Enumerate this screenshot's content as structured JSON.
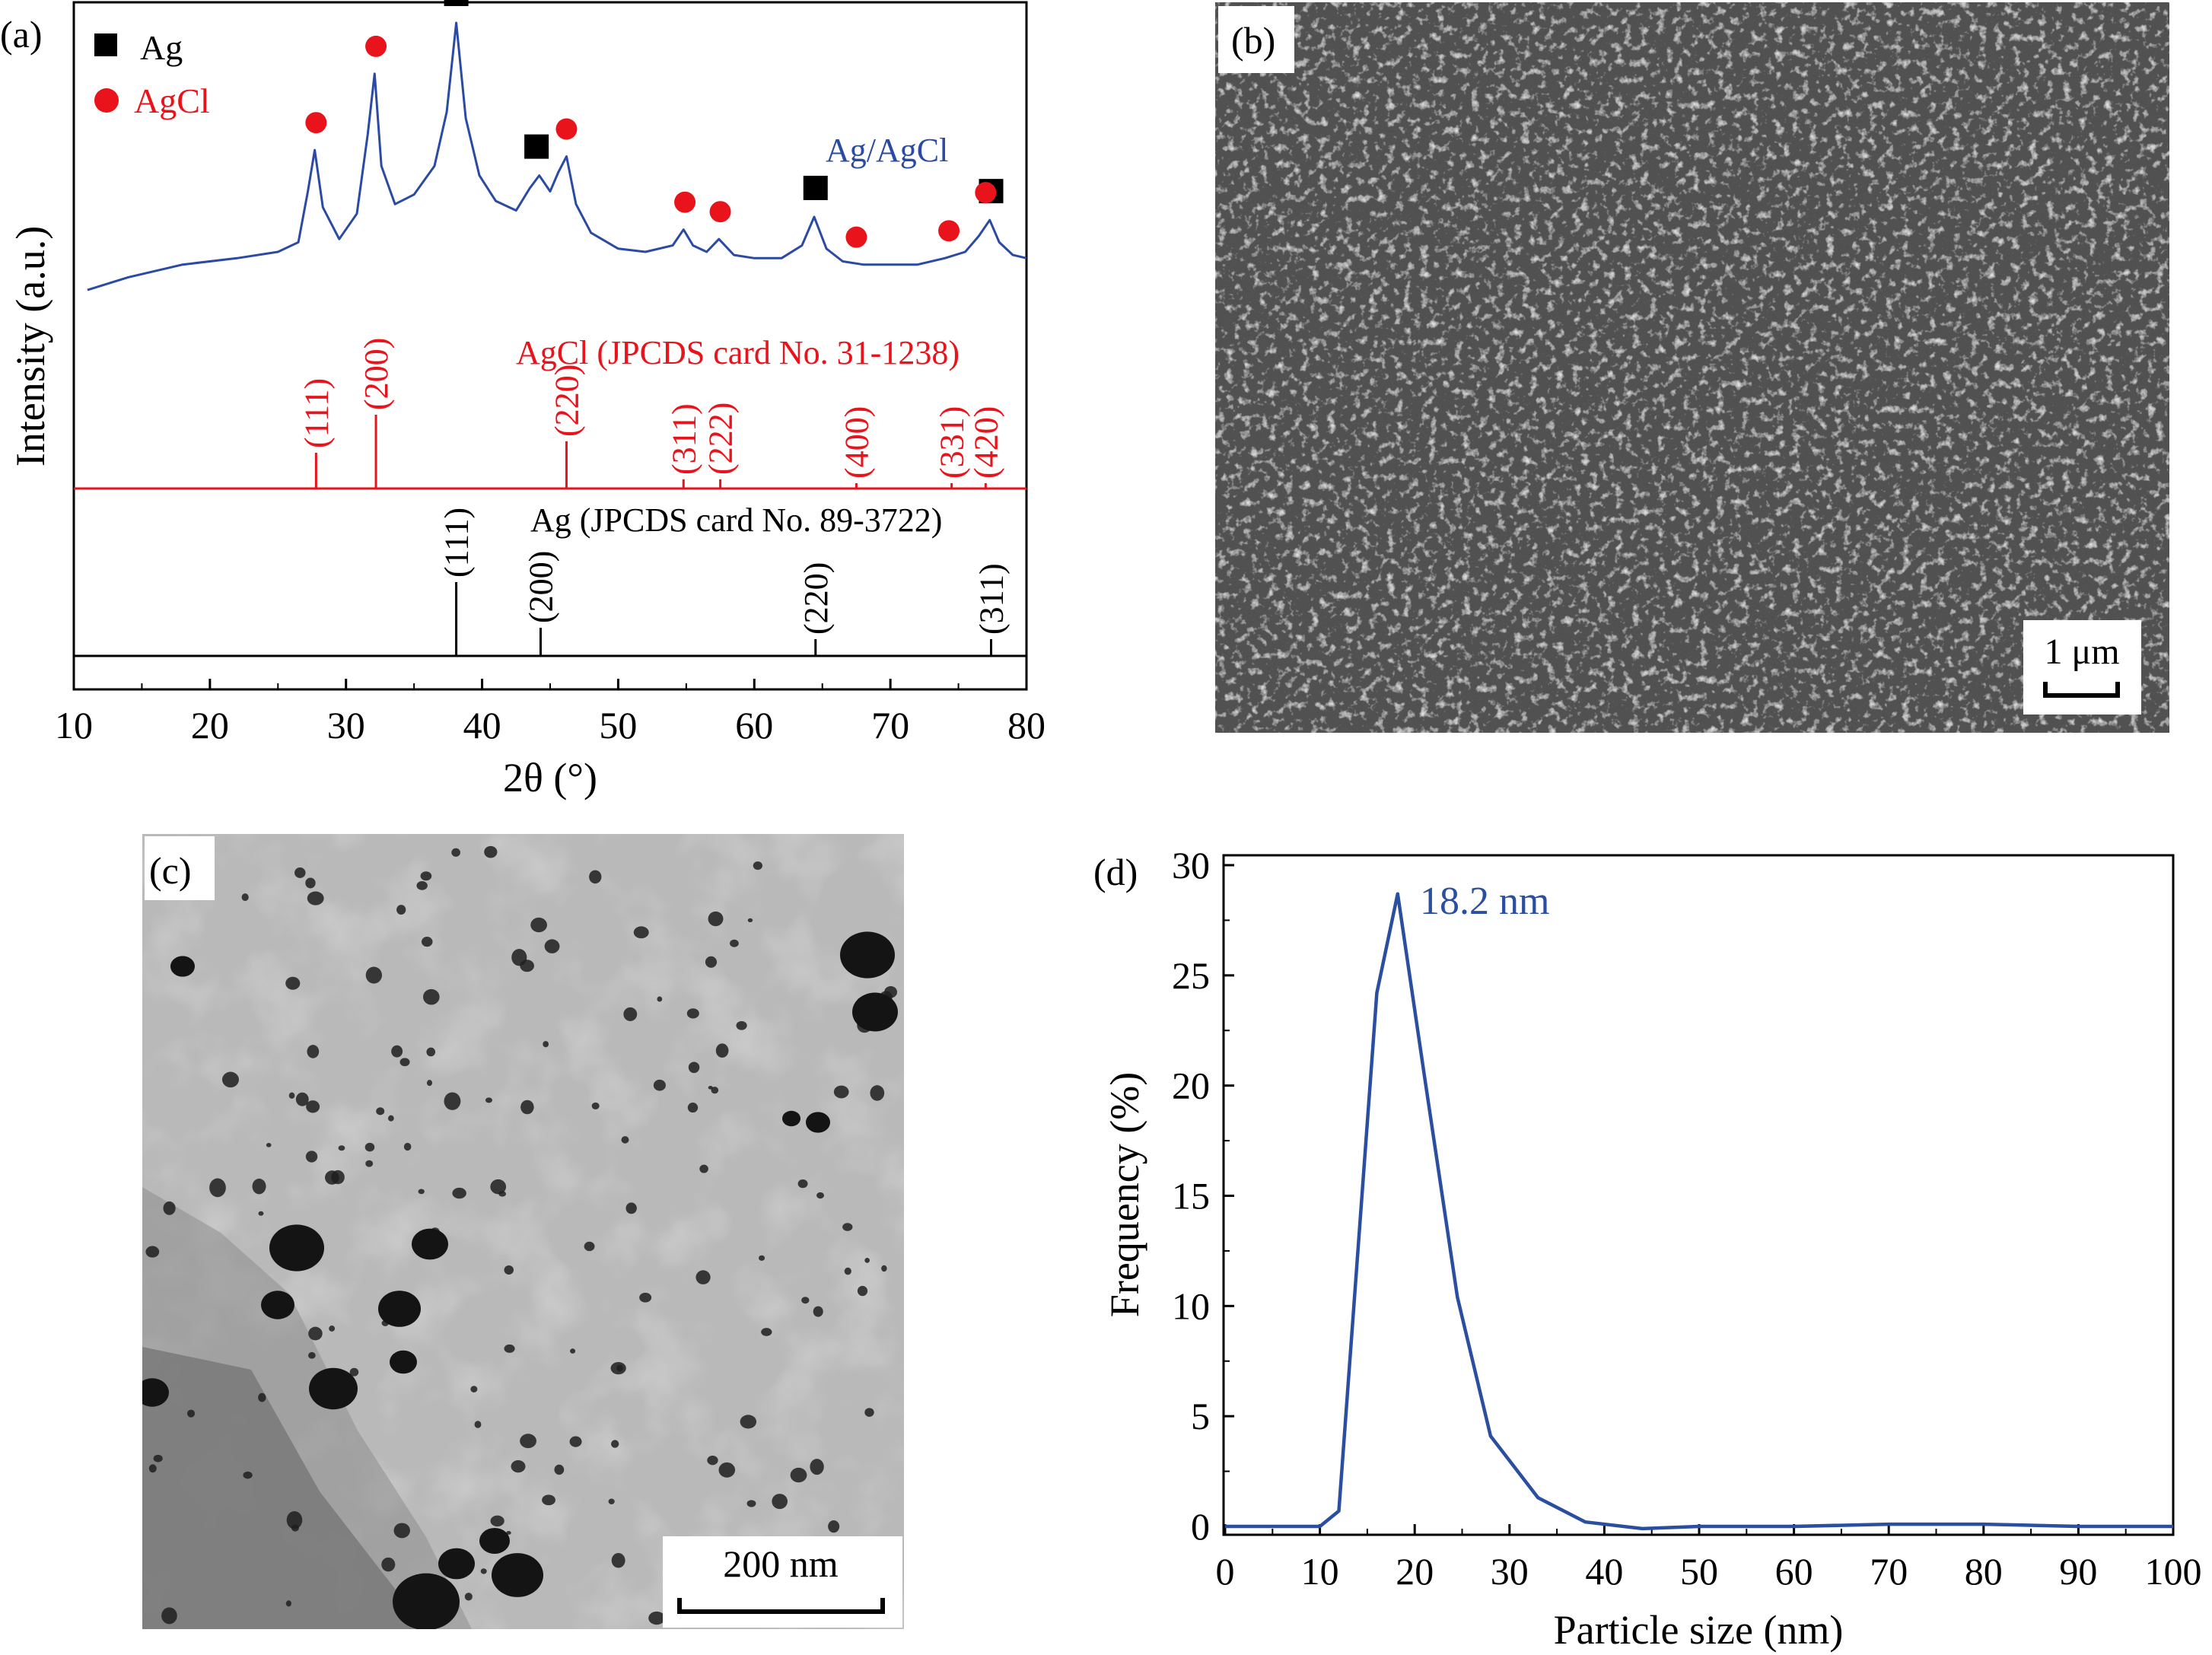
{
  "panels": {
    "a": {
      "label": "(a)",
      "legend": [
        {
          "marker": "square",
          "color": "#000000",
          "text": "Ag"
        },
        {
          "marker": "circle",
          "color": "#e8131b",
          "text": "AgCl"
        }
      ],
      "series_label": "Ag/AgCl",
      "ref_agcl_label": "AgCl (JPCDS card No. 31-1238)",
      "ref_ag_label": "Ag (JPCDS card No. 89-3722)",
      "xlabel": "2θ (°)",
      "ylabel": "Intensity (a.u.)"
    },
    "b": {
      "label": "(b)",
      "scale_bar": "1 μm"
    },
    "c": {
      "label": "(c)",
      "scale_bar": "200 nm"
    },
    "d": {
      "label": "(d)",
      "annotation": "18.2 nm",
      "xlabel": "Particle size (nm)",
      "ylabel": "Frequency (%)"
    }
  },
  "colors": {
    "xrd_line": "#2b4aa3",
    "agcl": "#e8131b",
    "ag": "#000000",
    "dist_line": "#2a4ea0",
    "sem_bg": "#5c5c5c",
    "tem_bg": "#b9b9b9"
  },
  "chart_data": [
    {
      "panel": "a",
      "type": "line",
      "title": "",
      "xlabel": "2θ (°)",
      "ylabel": "Intensity (a.u.)",
      "xlim": [
        10,
        80
      ],
      "xticks": [
        10,
        20,
        30,
        40,
        50,
        60,
        70,
        80
      ],
      "series": [
        {
          "name": "Ag/AgCl",
          "x": [
            11,
            14,
            18,
            22,
            25,
            26.5,
            27.2,
            27.7,
            28.3,
            29.5,
            30.8,
            31.6,
            32.1,
            32.6,
            33.6,
            35,
            36.5,
            37.4,
            38.1,
            38.8,
            39.8,
            41,
            42.5,
            43.5,
            44.2,
            45,
            45.6,
            46.2,
            46.9,
            48,
            50,
            52,
            54,
            54.8,
            55.5,
            56.5,
            57.4,
            58.5,
            60,
            62,
            63.5,
            64.4,
            65.3,
            66.5,
            68,
            70,
            72,
            74,
            75.5,
            76.5,
            77.3,
            78,
            79,
            80
          ],
          "y": [
            0.16,
            0.2,
            0.24,
            0.26,
            0.28,
            0.31,
            0.47,
            0.6,
            0.42,
            0.32,
            0.4,
            0.65,
            0.84,
            0.55,
            0.43,
            0.46,
            0.55,
            0.72,
            1.0,
            0.7,
            0.52,
            0.44,
            0.41,
            0.48,
            0.52,
            0.47,
            0.53,
            0.58,
            0.43,
            0.34,
            0.29,
            0.28,
            0.3,
            0.35,
            0.3,
            0.28,
            0.32,
            0.27,
            0.26,
            0.26,
            0.3,
            0.39,
            0.29,
            0.25,
            0.24,
            0.24,
            0.24,
            0.26,
            0.28,
            0.33,
            0.38,
            0.31,
            0.27,
            0.26
          ]
        },
        {
          "name": "AgCl (JPCDS card No. 31-1238)",
          "x": [
            27.8,
            32.2,
            46.2,
            54.8,
            57.5,
            67.5,
            74.5,
            77.0
          ],
          "hkl": [
            "(111)",
            "(200)",
            "(220)",
            "(311)",
            "(222)",
            "(400)",
            "(331)",
            "(420)"
          ],
          "y": [
            0.18,
            0.38,
            0.24,
            0.04,
            0.04,
            0.02,
            0.02,
            0.02
          ]
        },
        {
          "name": "Ag (JPCDS card No. 89-3722)",
          "x": [
            38.1,
            44.3,
            64.5,
            77.4
          ],
          "hkl": [
            "(111)",
            "(200)",
            "(220)",
            "(311)"
          ],
          "y": [
            0.38,
            0.14,
            0.08,
            0.08
          ]
        }
      ],
      "markers": {
        "Ag": [
          38.1,
          44.0,
          64.5,
          77.4
        ],
        "AgCl": [
          27.8,
          32.2,
          46.2,
          54.9,
          57.5,
          67.5,
          74.3,
          77.0
        ]
      }
    },
    {
      "panel": "d",
      "type": "line",
      "title": "",
      "xlabel": "Particle size (nm)",
      "ylabel": "Frequency (%)",
      "xlim": [
        0,
        100
      ],
      "ylim": [
        0,
        30
      ],
      "xticks": [
        0,
        10,
        20,
        30,
        40,
        50,
        60,
        70,
        80,
        90,
        100
      ],
      "yticks": [
        0,
        5,
        10,
        15,
        20,
        25,
        30
      ],
      "series": [
        {
          "name": "",
          "x": [
            0,
            10,
            12,
            16,
            18.2,
            21,
            24.5,
            28,
            33,
            38,
            44,
            50,
            60,
            70,
            80,
            90,
            100
          ],
          "y": [
            0,
            0,
            0.7,
            24.2,
            28.7,
            20.5,
            10.4,
            4.1,
            1.3,
            0.2,
            -0.1,
            0,
            0,
            0.1,
            0.1,
            0,
            0
          ]
        }
      ],
      "annotation": "18.2 nm"
    }
  ]
}
